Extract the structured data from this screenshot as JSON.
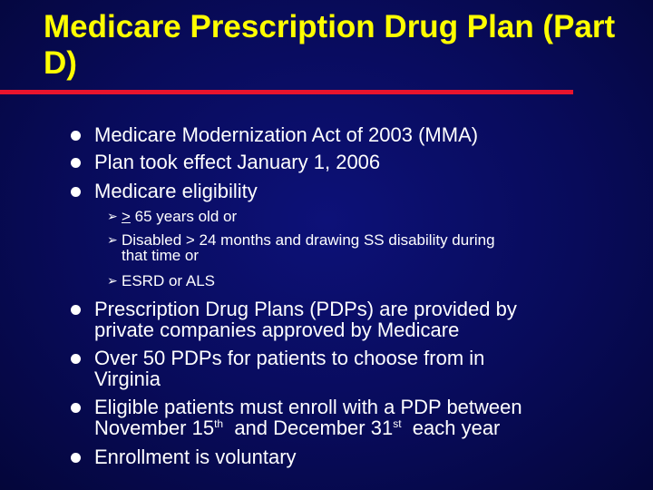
{
  "slide": {
    "title_line1": "Medicare Prescription Drug Plan   (Part",
    "title_line2": "D)",
    "bullets_top": [
      "Medicare Modernization Act of 2003 (MMA)",
      "Plan took effect January 1, 2006",
      "Medicare eligibility"
    ],
    "sub_bullets": {
      "age_symbol": ">",
      "age_rest": " 65 years old or",
      "disabled_line1": "Disabled > 24 months and drawing SS disability during",
      "disabled_line2": "that time or",
      "esrd": "ESRD or ALS"
    },
    "bullets_bottom": {
      "pdps_line1": "Prescription Drug Plans (PDPs) are provided by",
      "pdps_line2": "private companies approved by Medicare",
      "over50_line1": "Over 50 PDPs for patients to choose from in",
      "over50_line2": "Virginia",
      "enroll_line1": "Eligible patients must enroll with a PDP between",
      "enroll_line2_a": "November 15",
      "enroll_line2_sup1": "th",
      "enroll_line2_b": "  and December 31",
      "enroll_line2_sup2": "st",
      "enroll_line2_c": "  each year",
      "voluntary": "Enrollment is voluntary"
    },
    "colors": {
      "title": "#ffff00",
      "rule": "#e8142d",
      "background": "#080b5a",
      "text": "#ffffff"
    },
    "icons": {
      "bullet": "round-bullet-icon",
      "sub_bullet": "arrowhead-bullet-icon"
    }
  }
}
